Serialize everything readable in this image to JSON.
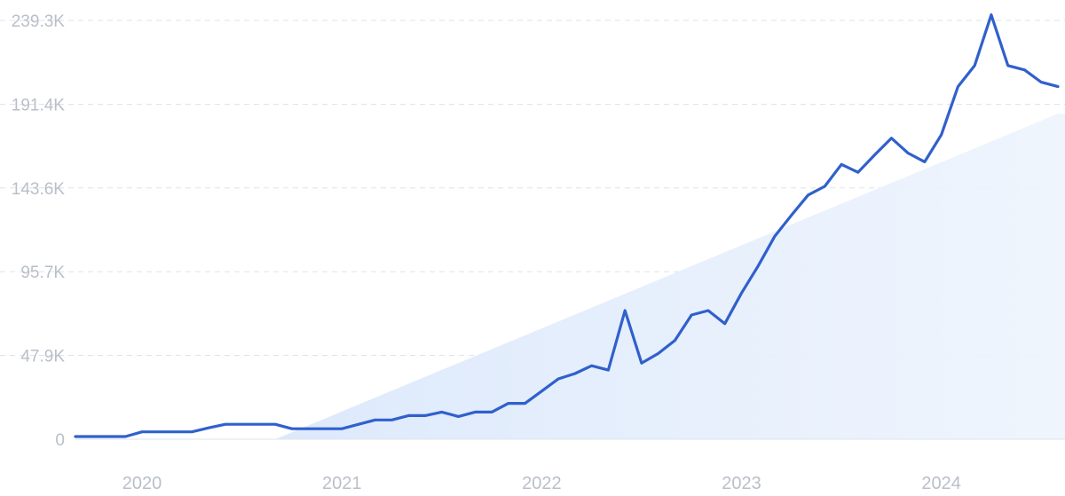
{
  "chart_data": {
    "type": "line",
    "title": "",
    "xlabel": "",
    "ylabel": "",
    "ylim": [
      0,
      239300
    ],
    "y_ticks": [
      {
        "value": 0,
        "label": "0"
      },
      {
        "value": 47900,
        "label": "47.9K"
      },
      {
        "value": 95700,
        "label": "95.7K"
      },
      {
        "value": 143600,
        "label": "143.6K"
      },
      {
        "value": 191400,
        "label": "191.4K"
      },
      {
        "value": 239300,
        "label": "239.3K"
      }
    ],
    "x_ticks": [
      {
        "value": "2020-01",
        "label": "2020"
      },
      {
        "value": "2021-01",
        "label": "2021"
      },
      {
        "value": "2022-01",
        "label": "2022"
      },
      {
        "value": "2023-01",
        "label": "2023"
      },
      {
        "value": "2024-01",
        "label": "2024"
      }
    ],
    "xlim": [
      "2019-09",
      "2024-08"
    ],
    "grid": true,
    "legend": "none",
    "colors": {
      "line": "#3060cc",
      "trend_fill": "#dde9fb",
      "grid": "#dfe3ea",
      "tick_text": "#b9bfc9"
    },
    "series": [
      {
        "x": [
          "2019-09",
          "2019-10",
          "2019-11",
          "2019-12",
          "2020-01",
          "2020-02",
          "2020-03",
          "2020-04",
          "2020-05",
          "2020-06",
          "2020-07",
          "2020-08",
          "2020-09",
          "2020-10",
          "2020-11",
          "2020-12",
          "2021-01",
          "2021-02",
          "2021-03",
          "2021-04",
          "2021-05",
          "2021-06",
          "2021-07",
          "2021-08",
          "2021-09",
          "2021-10",
          "2021-11",
          "2021-12",
          "2022-01",
          "2022-02",
          "2022-03",
          "2022-04",
          "2022-05",
          "2022-06",
          "2022-07",
          "2022-08",
          "2022-09",
          "2022-10",
          "2022-11",
          "2022-12",
          "2023-01",
          "2023-02",
          "2023-03",
          "2023-04",
          "2023-05",
          "2023-06",
          "2023-07",
          "2023-08",
          "2023-09",
          "2023-10",
          "2023-11",
          "2023-12",
          "2024-01",
          "2024-02",
          "2024-03",
          "2024-04",
          "2024-05",
          "2024-06",
          "2024-07",
          "2024-08"
        ],
        "values": [
          1500,
          1500,
          1500,
          1500,
          4200,
          4200,
          4200,
          4200,
          6500,
          8500,
          8500,
          8500,
          8500,
          6000,
          6000,
          6000,
          6000,
          8500,
          11000,
          11000,
          13500,
          13500,
          15500,
          13000,
          15500,
          15500,
          20500,
          20500,
          27500,
          34500,
          37500,
          42000,
          39500,
          73500,
          43500,
          49000,
          56500,
          71000,
          73500,
          66000,
          83500,
          99000,
          116000,
          128000,
          139500,
          144500,
          157000,
          152500,
          162500,
          172000,
          163500,
          158500,
          174000,
          201500,
          213500,
          242500,
          213500,
          211000,
          204000,
          201500
        ]
      }
    ],
    "trend": {
      "type": "area",
      "x": [
        "2020-09",
        "2024-08"
      ],
      "values": [
        0,
        186000
      ]
    }
  }
}
